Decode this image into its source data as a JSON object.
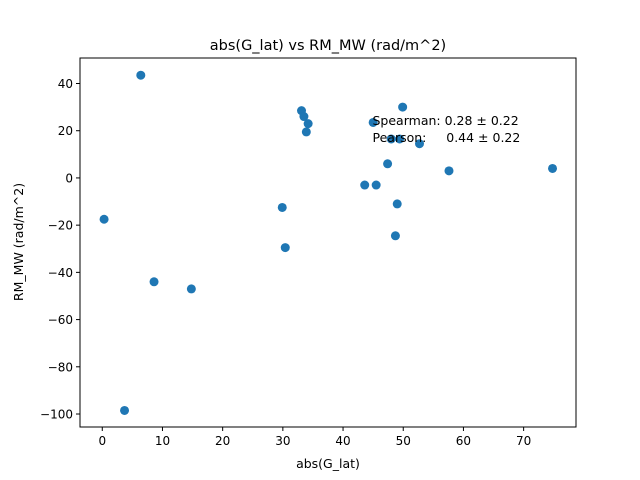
{
  "chart_data": {
    "type": "scatter",
    "title": "abs(G_lat) vs RM_MW (rad/m^2)",
    "xlabel": "abs(G_lat)",
    "ylabel": "RM_MW (rad/m^2)",
    "xlim": [
      -3.7,
      78.7
    ],
    "ylim": [
      -105.5,
      50.8
    ],
    "xticks": [
      0,
      10,
      20,
      30,
      40,
      50,
      60,
      70
    ],
    "xtick_labels": [
      "0",
      "10",
      "20",
      "30",
      "40",
      "50",
      "60",
      "70"
    ],
    "yticks": [
      -100,
      -80,
      -60,
      -40,
      -20,
      0,
      20,
      40
    ],
    "ytick_labels": [
      "−100",
      "−80",
      "−60",
      "−40",
      "−20",
      "0",
      "20",
      "40"
    ],
    "grid": false,
    "marker_color": "#1f77b4",
    "annotations": [
      "Spearman: 0.28 ± 0.22",
      "Pearson:     0.44 ± 0.22"
    ],
    "x": [
      0.3,
      3.7,
      6.4,
      8.6,
      14.8,
      29.9,
      30.4,
      33.1,
      33.5,
      33.9,
      34.2,
      43.6,
      45.0,
      45.5,
      47.4,
      48.0,
      48.7,
      49.0,
      49.4,
      49.9,
      52.7,
      57.6,
      74.8
    ],
    "y": [
      -17.5,
      -98.5,
      43.5,
      -44.0,
      -47.0,
      -12.5,
      -29.5,
      28.5,
      26.0,
      19.5,
      23.0,
      -3.0,
      23.5,
      -3.0,
      6.0,
      16.5,
      -24.5,
      -11.0,
      16.5,
      30.0,
      14.5,
      3.0,
      4.0
    ]
  }
}
